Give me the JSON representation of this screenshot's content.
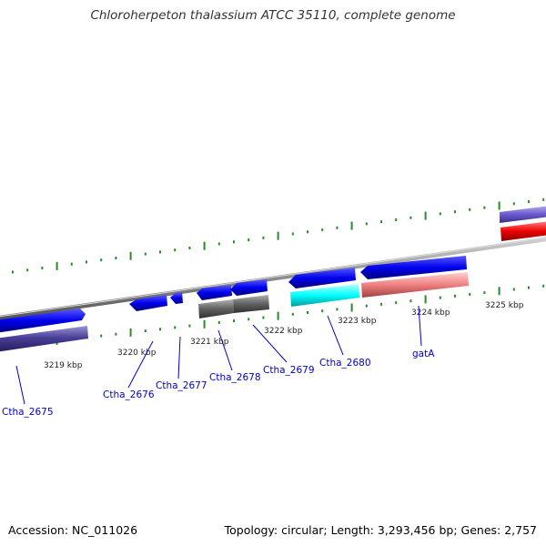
{
  "title": "Chloroherpeton thalassium ATCC 35110, complete genome",
  "footer": {
    "accession": "Accession: NC_011026",
    "summary": "Topology: circular; Length: 3,293,456 bp; Genes: 2,757"
  },
  "scale_labels": [
    "3219 kbp",
    "3220 kbp",
    "3221 kbp",
    "3222 kbp",
    "3223 kbp",
    "3224 kbp",
    "3225 kbp"
  ],
  "genes": [
    "Ctha_2675",
    "Ctha_2676",
    "Ctha_2677",
    "Ctha_2678",
    "Ctha_2679",
    "Ctha_2680",
    "gatA"
  ],
  "colors": {
    "backbone": "#8c8c8c",
    "gene_forward": "#0000ee",
    "tick": "#2a8a2a",
    "label": "#0000cc"
  }
}
